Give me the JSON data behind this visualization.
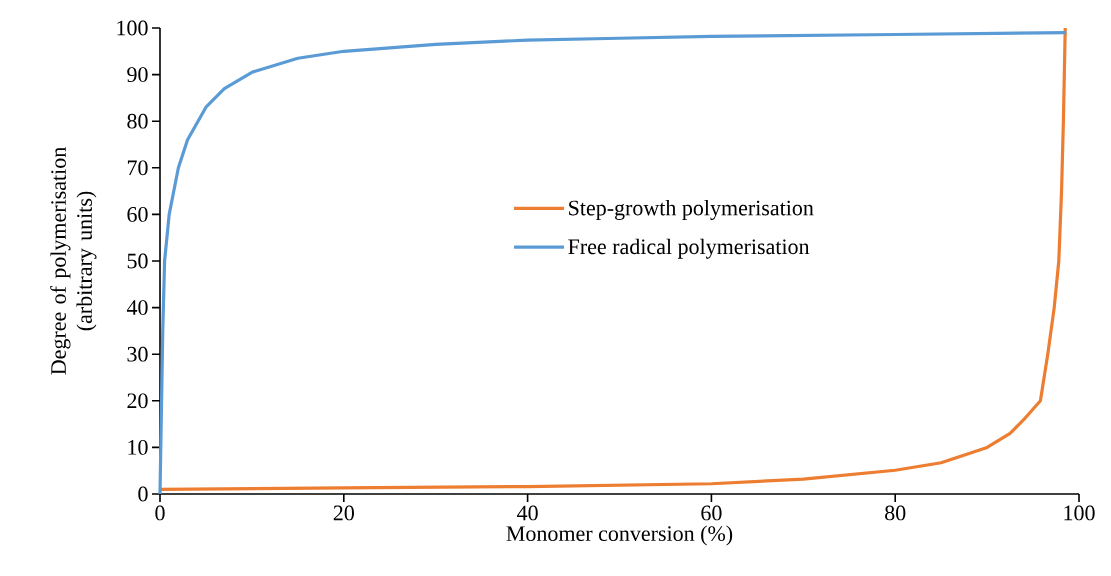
{
  "chart_data": {
    "type": "line",
    "xlabel": "Monomer conversion (%)",
    "ylabel": "Degree of polymerisation (arbitrary units)",
    "xlim": [
      0,
      100
    ],
    "xticks": [
      0,
      20,
      40,
      60,
      80,
      100
    ],
    "ylim": [
      0,
      100
    ],
    "yticks": [
      0,
      10,
      20,
      30,
      40,
      50,
      60,
      70,
      80,
      90,
      100
    ],
    "grid": false,
    "legend": "right",
    "marker": "none",
    "line_style": "solid",
    "series": [
      {
        "name": "Step-growth polymerisation",
        "color": "#ed7d31",
        "x": [
          0,
          20,
          40,
          60,
          70,
          80,
          85,
          90,
          92.5,
          94,
          95.8,
          96.6,
          97.3,
          97.8,
          98.1,
          98.3,
          98.5
        ],
        "values": [
          1,
          1.3,
          1.6,
          2.2,
          3.2,
          5.1,
          6.7,
          10,
          13,
          16,
          20,
          30,
          40,
          50,
          65,
          80,
          100
        ]
      },
      {
        "name": "Free radical polymerisation",
        "color": "#5b9bd5",
        "x": [
          0,
          0.3,
          0.5,
          1,
          2,
          3,
          5,
          7,
          10,
          15,
          20,
          30,
          40,
          50,
          60,
          80,
          98.6
        ],
        "values": [
          0,
          35,
          50,
          60,
          70,
          76,
          83,
          87,
          90.5,
          93.5,
          95,
          96.5,
          97.4,
          97.8,
          98.2,
          98.6,
          99
        ]
      }
    ]
  }
}
